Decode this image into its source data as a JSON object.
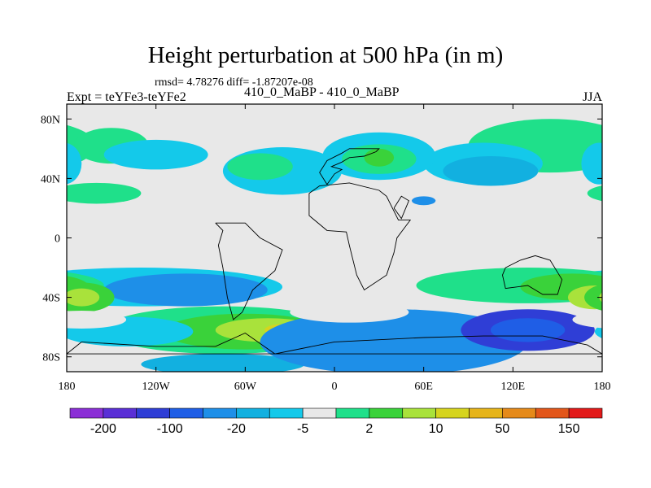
{
  "title": "Height perturbation at 500 hPa (in m)",
  "stats": "rmsd= 4.78276 diff= -1.87207e-08",
  "left_label": "Expt = teYFe3-teYFe2",
  "center_label": "410_0_MaBP - 410_0_MaBP",
  "right_label": "JJA",
  "colors": {
    "background": "#e8e8e8",
    "levels": [
      "#8b2fd6",
      "#5a2fd6",
      "#2f3ed6",
      "#1f5ee6",
      "#1e8fe8",
      "#12b0e0",
      "#14c9ea",
      "#e8e8e8",
      "#1fe08a",
      "#3ad23a",
      "#a9e23b",
      "#d6d41e",
      "#e6b41a",
      "#e58a1a",
      "#e2561a",
      "#e21a1a"
    ]
  },
  "chart_data": {
    "type": "heatmap",
    "title": "Height perturbation at 500 hPa (in m)",
    "xlabel": "",
    "ylabel": "",
    "xlim": [
      -180,
      180
    ],
    "ylim": [
      -90,
      90
    ],
    "x_ticks": [
      {
        "value": -180,
        "label": "180"
      },
      {
        "value": -120,
        "label": "120W"
      },
      {
        "value": -60,
        "label": "60W"
      },
      {
        "value": 0,
        "label": "0"
      },
      {
        "value": 60,
        "label": "60E"
      },
      {
        "value": 120,
        "label": "120E"
      },
      {
        "value": 180,
        "label": "180"
      }
    ],
    "y_ticks": [
      {
        "value": 80,
        "label": "80N"
      },
      {
        "value": 40,
        "label": "40N"
      },
      {
        "value": 0,
        "label": "0"
      },
      {
        "value": -40,
        "label": "40S"
      },
      {
        "value": -80,
        "label": "80S"
      }
    ],
    "colorbar_labels": [
      "-200",
      "-100",
      "-20",
      "-5",
      "2",
      "10",
      "50",
      "150"
    ],
    "anomalies": [
      {
        "lon": 145,
        "lat": 62,
        "rlon": 55,
        "rlat": 18,
        "level": 8
      },
      {
        "lon": -150,
        "lat": 62,
        "rlon": 25,
        "rlat": 12,
        "level": 8
      },
      {
        "lon": 100,
        "lat": 50,
        "rlon": 40,
        "rlat": 14,
        "level": 6
      },
      {
        "lon": 105,
        "lat": 45,
        "rlon": 32,
        "rlat": 10,
        "level": 5
      },
      {
        "lon": 30,
        "lat": 55,
        "rlon": 38,
        "rlat": 16,
        "level": 6
      },
      {
        "lon": 30,
        "lat": 53,
        "rlon": 25,
        "rlat": 10,
        "level": 8
      },
      {
        "lon": 30,
        "lat": 54,
        "rlon": 10,
        "rlat": 6,
        "level": 9
      },
      {
        "lon": -35,
        "lat": 45,
        "rlon": 40,
        "rlat": 16,
        "level": 6
      },
      {
        "lon": -50,
        "lat": 48,
        "rlon": 22,
        "rlat": 9,
        "level": 8
      },
      {
        "lon": -120,
        "lat": 56,
        "rlon": 35,
        "rlat": 10,
        "level": 6
      },
      {
        "lon": -160,
        "lat": 30,
        "rlon": 30,
        "rlat": 7,
        "level": 8
      },
      {
        "lon": 60,
        "lat": 25,
        "rlon": 8,
        "rlat": 3,
        "level": 4
      },
      {
        "lon": 178,
        "lat": 50,
        "rlon": 12,
        "rlat": 14,
        "level": 6
      },
      {
        "lon": -130,
        "lat": -33,
        "rlon": 95,
        "rlat": 13,
        "level": 6
      },
      {
        "lon": -100,
        "lat": -35,
        "rlon": 55,
        "rlat": 11,
        "level": 4
      },
      {
        "lon": 130,
        "lat": -32,
        "rlon": 75,
        "rlat": 12,
        "level": 8
      },
      {
        "lon": 160,
        "lat": -33,
        "rlon": 35,
        "rlat": 9,
        "level": 9
      },
      {
        "lon": 175,
        "lat": -40,
        "rlon": 18,
        "rlat": 8,
        "level": 10
      },
      {
        "lon": -170,
        "lat": -40,
        "rlon": 22,
        "rlat": 10,
        "level": 9
      },
      {
        "lon": -170,
        "lat": -40,
        "rlon": 12,
        "rlat": 6,
        "level": 10
      },
      {
        "lon": -75,
        "lat": -62,
        "rlon": 80,
        "rlat": 16,
        "level": 8
      },
      {
        "lon": -60,
        "lat": -63,
        "rlon": 55,
        "rlat": 12,
        "level": 9
      },
      {
        "lon": -45,
        "lat": -62,
        "rlon": 35,
        "rlat": 8,
        "level": 10
      },
      {
        "lon": -35,
        "lat": -62,
        "rlon": 12,
        "rlat": 4,
        "level": 11
      },
      {
        "lon": -140,
        "lat": -63,
        "rlon": 45,
        "rlat": 10,
        "level": 6
      },
      {
        "lon": -75,
        "lat": -85,
        "rlon": 55,
        "rlat": 7,
        "level": 5
      },
      {
        "lon": 40,
        "lat": -70,
        "rlon": 90,
        "rlat": 22,
        "level": 4
      },
      {
        "lon": 130,
        "lat": -62,
        "rlon": 45,
        "rlat": 14,
        "level": 2
      },
      {
        "lon": 130,
        "lat": -62,
        "rlon": 25,
        "rlat": 8,
        "level": 3
      },
      {
        "lon": -170,
        "lat": -55,
        "rlon": 30,
        "rlat": 6,
        "level": 7
      },
      {
        "lon": 10,
        "lat": -50,
        "rlon": 40,
        "rlat": 7,
        "level": 7
      }
    ],
    "coastlines": [
      [
        [
          -5,
          36
        ],
        [
          0,
          43
        ],
        [
          5,
          46
        ],
        [
          -2,
          48
        ],
        [
          5,
          51
        ],
        [
          10,
          54
        ],
        [
          20,
          55
        ],
        [
          28,
          58
        ],
        [
          30,
          60
        ],
        [
          10,
          60
        ],
        [
          5,
          57
        ],
        [
          -5,
          52
        ],
        [
          -10,
          44
        ],
        [
          -5,
          36
        ]
      ],
      [
        [
          -17,
          30
        ],
        [
          -10,
          35
        ],
        [
          10,
          37
        ],
        [
          30,
          32
        ],
        [
          35,
          28
        ],
        [
          43,
          12
        ],
        [
          51,
          12
        ],
        [
          42,
          0
        ],
        [
          40,
          -10
        ],
        [
          35,
          -25
        ],
        [
          20,
          -35
        ],
        [
          15,
          -25
        ],
        [
          10,
          -5
        ],
        [
          8,
          4
        ],
        [
          -5,
          5
        ],
        [
          -17,
          15
        ],
        [
          -17,
          30
        ]
      ],
      [
        [
          -80,
          10
        ],
        [
          -75,
          5
        ],
        [
          -78,
          -5
        ],
        [
          -75,
          -20
        ],
        [
          -72,
          -40
        ],
        [
          -68,
          -55
        ],
        [
          -62,
          -50
        ],
        [
          -55,
          -35
        ],
        [
          -40,
          -22
        ],
        [
          -35,
          -8
        ],
        [
          -50,
          0
        ],
        [
          -60,
          10
        ],
        [
          -80,
          10
        ]
      ],
      [
        [
          115,
          -20
        ],
        [
          125,
          -15
        ],
        [
          135,
          -12
        ],
        [
          145,
          -15
        ],
        [
          153,
          -28
        ],
        [
          150,
          -38
        ],
        [
          140,
          -38
        ],
        [
          130,
          -32
        ],
        [
          115,
          -34
        ],
        [
          113,
          -25
        ],
        [
          115,
          -20
        ]
      ],
      [
        [
          -170,
          -70
        ],
        [
          -120,
          -73
        ],
        [
          -80,
          -73
        ],
        [
          -60,
          -64
        ],
        [
          -40,
          -78
        ],
        [
          0,
          -70
        ],
        [
          60,
          -67
        ],
        [
          100,
          -66
        ],
        [
          140,
          -66
        ],
        [
          170,
          -72
        ],
        [
          180,
          -78
        ],
        [
          -180,
          -78
        ],
        [
          -170,
          -70
        ]
      ],
      [
        [
          40,
          20
        ],
        [
          45,
          13
        ],
        [
          50,
          25
        ],
        [
          45,
          28
        ],
        [
          40,
          20
        ]
      ]
    ]
  }
}
